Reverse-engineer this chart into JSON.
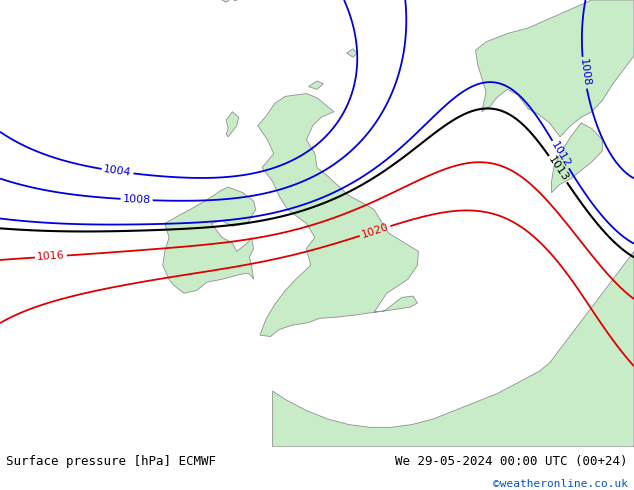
{
  "title_left": "Surface pressure [hPa] ECMWF",
  "title_right": "We 29-05-2024 00:00 UTC (00+24)",
  "copyright": "©weatheronline.co.uk",
  "bg_color": "#e2e2e2",
  "land_color": "#c8ecc8",
  "border_color": "#909090",
  "font_size_label": 8,
  "font_size_title": 9,
  "font_size_copy": 8,
  "lon_min": -18,
  "lon_max": 12,
  "lat_min": 46,
  "lat_max": 62,
  "blue_levels": [
    1004,
    1008,
    1012
  ],
  "red_levels": [
    1016,
    1020
  ],
  "black_levels": [
    1013
  ],
  "blue_color": "#0000dd",
  "red_color": "#dd0000",
  "black_color": "#000000",
  "white_bar_height": 0.088
}
